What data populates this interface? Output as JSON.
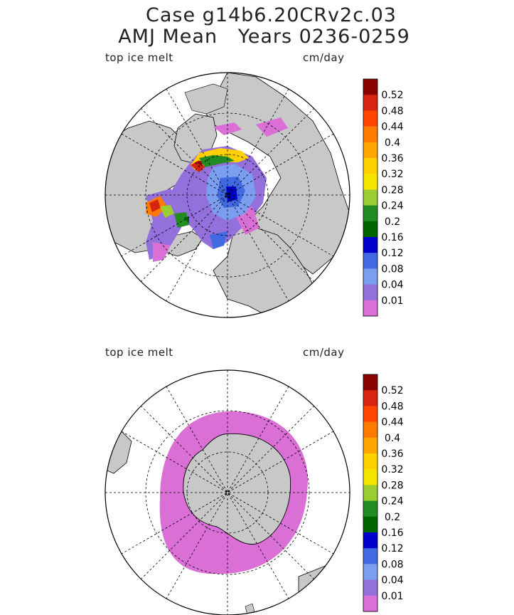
{
  "title": {
    "line1": "Case g14b6.20CRv2c.03",
    "line2": "AMJ Mean   Years 0236-0259"
  },
  "panels": [
    {
      "name": "arctic",
      "variable": "top ice melt",
      "units": "cm/day",
      "hemisphere": "north"
    },
    {
      "name": "antarctic",
      "variable": "top ice melt",
      "units": "cm/day",
      "hemisphere": "south"
    }
  ],
  "colorbar": {
    "levels": [
      "0.52",
      "0.48",
      "0.44",
      "0.4",
      "0.36",
      "0.32",
      "0.28",
      "0.24",
      "0.2",
      "0.16",
      "0.12",
      "0.08",
      "0.04",
      "0.01"
    ],
    "colors": [
      "#8b0000",
      "#d62410",
      "#ff4500",
      "#ff7b00",
      "#ffa500",
      "#ffd000",
      "#f5e600",
      "#9acd32",
      "#228b22",
      "#006400",
      "#0000cd",
      "#4169e1",
      "#7b9ef0",
      "#9370db",
      "#da70d6"
    ]
  },
  "colors": {
    "land": "#c8c8c8",
    "ice_low": "#da70d6"
  }
}
